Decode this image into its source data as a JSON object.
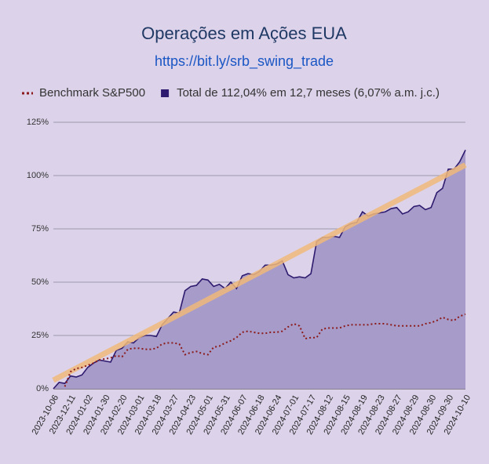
{
  "chart_data": {
    "type": "line",
    "title": "Operações em Ações EUA",
    "subtitle": "https://bit.ly/srb_swing_trade",
    "categories": [
      "2023-10-06",
      null,
      null,
      "2023-12-11",
      null,
      null,
      "2024-01-02",
      null,
      null,
      "2024-01-30",
      null,
      null,
      "2024-02-20",
      null,
      null,
      "2024-03-01",
      null,
      null,
      "2024-03-18",
      null,
      null,
      "2024-03-27",
      null,
      null,
      "2024-04-23",
      null,
      null,
      "2024-05-01",
      null,
      null,
      "2024-05-31",
      null,
      null,
      "2024-06-07",
      null,
      null,
      "2024-06-18",
      null,
      null,
      "2024-06-24",
      null,
      null,
      "2024-07-01",
      null,
      null,
      "2024-07-17",
      null,
      null,
      "2024-08-12",
      null,
      null,
      "2024-08-15",
      null,
      null,
      "2024-08-19",
      null,
      null,
      "2024-08-23",
      null,
      null,
      "2024-08-27",
      null,
      null,
      "2024-08-29",
      null,
      null,
      "2024-08-30",
      null,
      null,
      "2024-09-30",
      null,
      null,
      "2024-10-10"
    ],
    "series": [
      {
        "name": "Benchmark S&P500",
        "color": "#8b1a1a",
        "style": "dotted",
        "values": [
          null,
          null,
          1,
          8,
          9.5,
          10,
          11,
          12,
          13.5,
          14,
          14.5,
          15.5,
          15,
          18.5,
          19,
          19,
          18.5,
          18.5,
          19,
          21,
          21.5,
          21.5,
          21,
          16,
          17,
          17.5,
          16.5,
          16,
          19.5,
          20,
          21.5,
          22.5,
          24,
          26.5,
          27,
          26.5,
          26,
          26,
          26.5,
          26.5,
          27,
          29,
          30.5,
          29.5,
          23.5,
          24,
          24,
          28,
          28.5,
          28.5,
          28.5,
          29.5,
          30,
          30,
          30,
          30,
          30.5,
          30.5,
          30.5,
          30,
          29.5,
          29.5,
          29.5,
          29.5,
          29.5,
          30.5,
          31,
          32,
          33.5,
          32.5,
          32,
          34,
          35
        ]
      },
      {
        "name": "Total de 112,04% em 12,7 meses (6,07% a.m. j.c.)",
        "color": "#2e1a6e",
        "fill": "#a79cc9",
        "style": "area",
        "values": [
          0,
          3,
          2.5,
          6,
          5.5,
          6.5,
          10,
          12,
          13.5,
          13,
          12.5,
          18,
          19,
          22,
          21.5,
          24,
          25,
          25,
          24.5,
          30,
          33,
          36,
          35.5,
          46,
          48,
          48.5,
          51.5,
          51,
          48,
          49,
          47,
          50,
          47,
          53,
          54,
          53.5,
          55,
          58,
          58,
          58.5,
          60,
          53.5,
          52,
          52.5,
          52,
          54,
          69,
          71,
          71,
          71.5,
          71,
          76,
          77.5,
          78,
          83,
          81,
          82,
          82.5,
          83,
          84.5,
          85,
          82,
          83,
          85.5,
          86,
          84,
          85,
          92,
          94,
          103,
          103,
          106.5,
          112
        ]
      }
    ],
    "trendline": {
      "color": "#f0b87a",
      "values": [
        4,
        105
      ]
    },
    "ylim": [
      0,
      125
    ],
    "yticks": [
      {
        "value": 0,
        "label": "0%"
      },
      {
        "value": 25,
        "label": "25%"
      },
      {
        "value": 50,
        "label": "50%"
      },
      {
        "value": 75,
        "label": "75%"
      },
      {
        "value": 100,
        "label": "100%"
      },
      {
        "value": 125,
        "label": "125%"
      }
    ],
    "grid": true,
    "background": "#dcd3ea",
    "legend": "top"
  }
}
